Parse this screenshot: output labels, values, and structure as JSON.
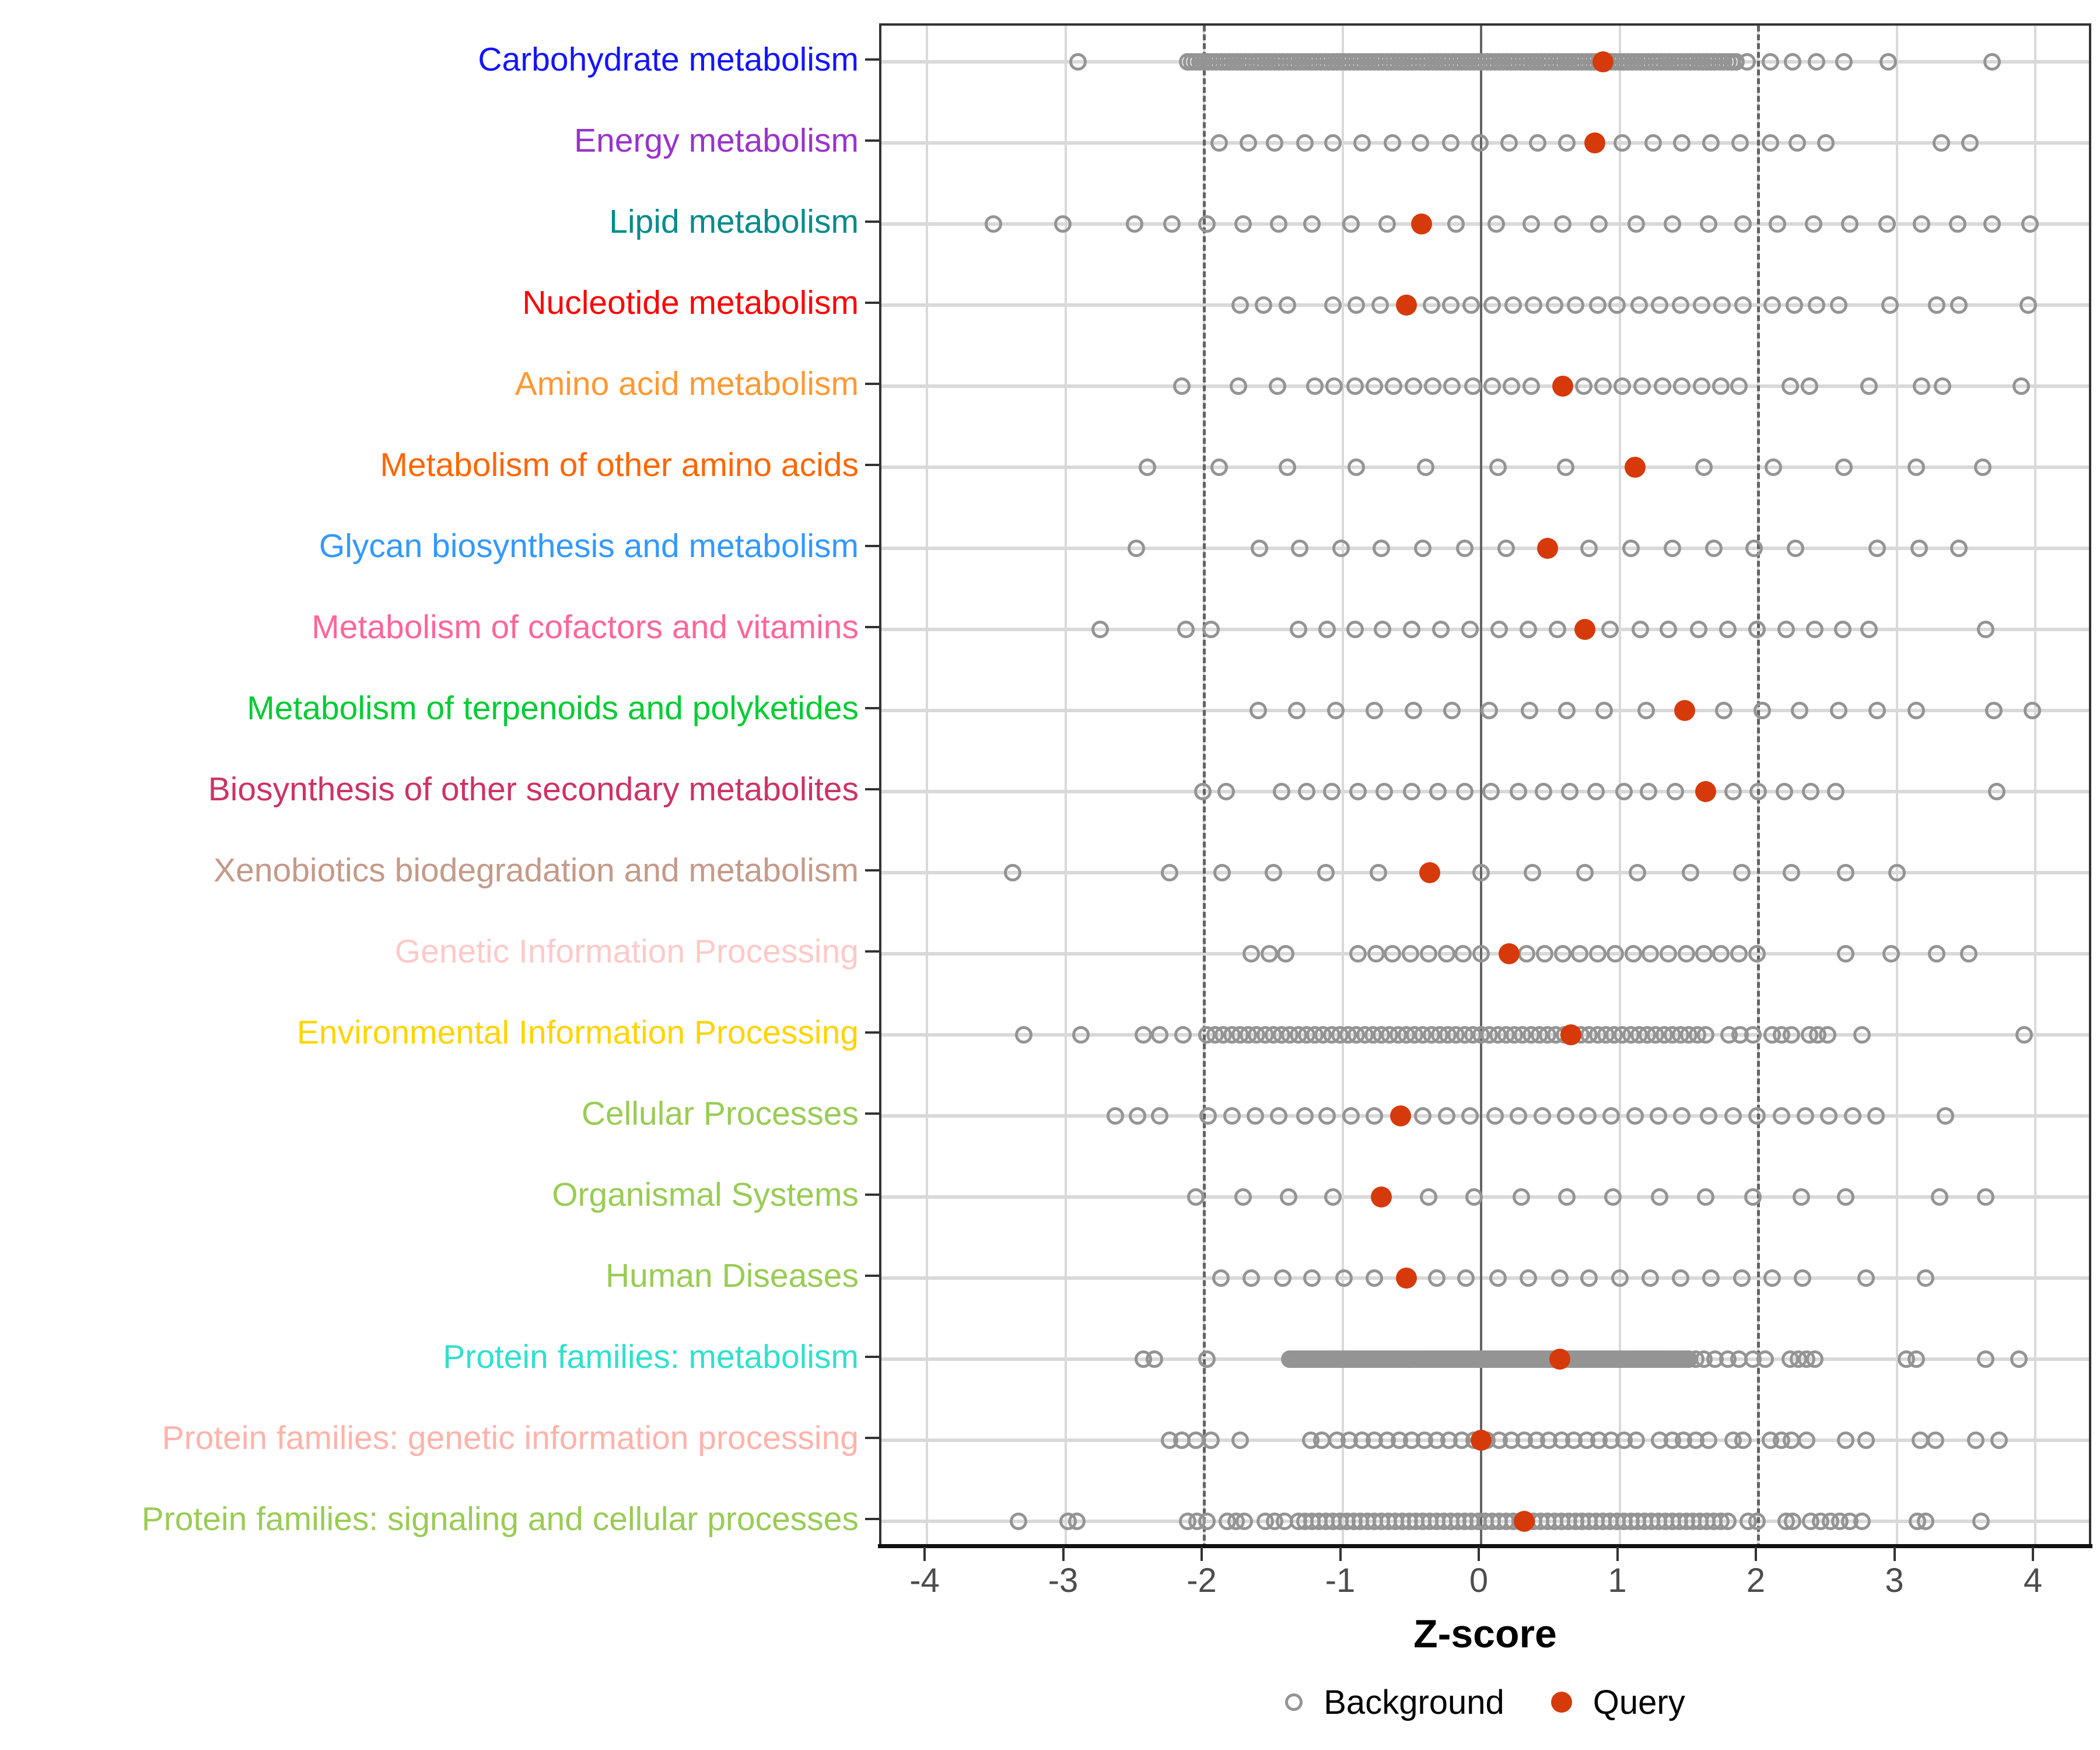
{
  "chart_data": {
    "type": "scatter",
    "subtype": "strip-plot",
    "title": "",
    "xlabel": "Z-score",
    "x_ticks": [
      "-4",
      "-3",
      "-2",
      "-1",
      "0",
      "1",
      "2",
      "3",
      "4"
    ],
    "x_tick_values": [
      -4,
      -3,
      -2,
      -1,
      0,
      1,
      2,
      3,
      4
    ],
    "x_range": [
      -4.35,
      4.42
    ],
    "grid": "major-x-and-category-rows",
    "reference_lines": {
      "solid_at": 0,
      "dashed_at": [
        -2,
        2
      ]
    },
    "legend_position": "bottom-center",
    "legend": [
      {
        "label": "Background",
        "marker": "open-circle",
        "color": "#949494"
      },
      {
        "label": "Query",
        "marker": "filled-circle",
        "color": "#D63A0A"
      }
    ],
    "point_colors": {
      "background_stroke": "#949494",
      "query_fill": "#D63A0A"
    },
    "categories": [
      {
        "label": "Carbohydrate metabolism",
        "color": "#1414FF",
        "query": 0.88,
        "background": {
          "bands": [
            {
              "from": -2.12,
              "to": 1.84,
              "step": 0.03
            }
          ],
          "points": [
            -2.91,
            1.92,
            2.09,
            2.25,
            2.42,
            2.62,
            2.94,
            3.69
          ]
        }
      },
      {
        "label": "Energy metabolism",
        "color": "#9933CC",
        "query": 0.82,
        "background": {
          "bands": [],
          "points": [
            -1.89,
            -1.68,
            -1.49,
            -1.27,
            -1.07,
            -0.86,
            -0.64,
            -0.44,
            -0.22,
            -0.01,
            0.2,
            0.41,
            0.62,
            1.02,
            1.24,
            1.45,
            1.66,
            1.87,
            2.09,
            2.28,
            2.49,
            3.32,
            3.53
          ]
        }
      },
      {
        "label": "Lipid metabolism",
        "color": "#008B8B",
        "query": -0.43,
        "background": {
          "bands": [],
          "points": [
            -3.52,
            -3.02,
            -2.5,
            -2.23,
            -1.98,
            -1.72,
            -1.46,
            -1.22,
            -0.94,
            -0.68,
            -0.18,
            0.11,
            0.36,
            0.59,
            0.85,
            1.12,
            1.38,
            1.64,
            1.89,
            2.14,
            2.4,
            2.66,
            2.93,
            3.18,
            3.44,
            3.69,
            3.96
          ]
        }
      },
      {
        "label": "Nucleotide metabolism",
        "color": "#FF0000",
        "query": -0.54,
        "background": {
          "bands": [],
          "points": [
            -1.74,
            -1.57,
            -1.4,
            -1.07,
            -0.9,
            -0.73,
            -0.36,
            -0.22,
            -0.07,
            0.08,
            0.23,
            0.38,
            0.53,
            0.68,
            0.84,
            0.98,
            1.14,
            1.29,
            1.44,
            1.59,
            1.74,
            1.89,
            2.1,
            2.26,
            2.42,
            2.58,
            2.95,
            3.29,
            3.45,
            3.95
          ]
        }
      },
      {
        "label": "Amino acid metabolism",
        "color": "#FF9933",
        "query": 0.59,
        "background": {
          "bands": [],
          "points": [
            -2.16,
            -1.75,
            -1.47,
            -1.2,
            -1.06,
            -0.91,
            -0.77,
            -0.63,
            -0.49,
            -0.35,
            -0.21,
            -0.06,
            0.08,
            0.22,
            0.36,
            0.74,
            0.88,
            1.02,
            1.16,
            1.31,
            1.45,
            1.59,
            1.73,
            1.86,
            2.23,
            2.37,
            2.8,
            3.18,
            3.33,
            3.9
          ]
        }
      },
      {
        "label": "Metabolism of other amino acids",
        "color": "#FF6600",
        "query": 1.11,
        "background": {
          "bands": [],
          "points": [
            -2.41,
            -1.89,
            -1.4,
            -0.9,
            -0.4,
            0.12,
            0.61,
            1.61,
            2.11,
            2.62,
            3.14,
            3.62
          ]
        }
      },
      {
        "label": "Glycan biosynthesis and metabolism",
        "color": "#3399FF",
        "query": 0.48,
        "background": {
          "bands": [],
          "points": [
            -2.49,
            -1.6,
            -1.31,
            -1.01,
            -0.72,
            -0.42,
            -0.12,
            0.18,
            0.78,
            1.08,
            1.38,
            1.68,
            1.97,
            2.27,
            2.86,
            3.16,
            3.45
          ]
        }
      },
      {
        "label": "Metabolism of cofactors and vitamins",
        "color": "#FF6699",
        "query": 0.75,
        "background": {
          "bands": [],
          "points": [
            -2.75,
            -2.13,
            -1.95,
            -1.32,
            -1.11,
            -0.91,
            -0.71,
            -0.5,
            -0.29,
            -0.08,
            0.13,
            0.34,
            0.55,
            0.93,
            1.15,
            1.35,
            1.57,
            1.78,
            1.99,
            2.2,
            2.41,
            2.61,
            2.8,
            3.64
          ]
        }
      },
      {
        "label": "Metabolism of terpenoids and polyketides",
        "color": "#00CC33",
        "query": 1.47,
        "background": {
          "bands": [],
          "points": [
            -1.61,
            -1.33,
            -1.05,
            -0.77,
            -0.49,
            -0.21,
            0.06,
            0.35,
            0.62,
            0.89,
            1.19,
            1.75,
            2.03,
            2.3,
            2.58,
            2.86,
            3.14,
            3.7,
            3.98
          ]
        }
      },
      {
        "label": "Biosynthesis of other secondary metabolites",
        "color": "#CC3366",
        "query": 1.62,
        "background": {
          "bands": [],
          "points": [
            -2.01,
            -1.84,
            -1.44,
            -1.26,
            -1.08,
            -0.89,
            -0.7,
            -0.5,
            -0.31,
            -0.12,
            0.07,
            0.27,
            0.45,
            0.64,
            0.83,
            1.03,
            1.21,
            1.4,
            1.82,
            2.0,
            2.19,
            2.38,
            2.56,
            3.72
          ]
        }
      },
      {
        "label": "Xenobiotics biodegradation and metabolism",
        "color": "#C49A89",
        "query": -0.37,
        "background": {
          "bands": [],
          "points": [
            -3.38,
            -2.25,
            -1.87,
            -1.5,
            -1.12,
            -0.74,
            0.0,
            0.37,
            0.75,
            1.13,
            1.51,
            1.88,
            2.24,
            2.63,
            3.0
          ]
        }
      },
      {
        "label": "Genetic Information Processing",
        "color": "#FFC9C9",
        "query": 0.2,
        "background": {
          "bands": [],
          "points": [
            -1.66,
            -1.53,
            -1.41,
            -0.89,
            -0.76,
            -0.64,
            -0.51,
            -0.38,
            -0.25,
            -0.13,
            0.0,
            0.33,
            0.46,
            0.59,
            0.71,
            0.84,
            0.97,
            1.1,
            1.22,
            1.35,
            1.48,
            1.61,
            1.73,
            1.86,
            1.99,
            2.63,
            2.96,
            3.29,
            3.52
          ]
        }
      },
      {
        "label": "Environmental Information Processing",
        "color": "#FFD400",
        "query": 0.65,
        "background": {
          "bands": [
            {
              "from": -1.98,
              "to": 1.64,
              "step": 0.06
            }
          ],
          "points": [
            -3.3,
            -2.89,
            -2.44,
            -2.32,
            -2.15,
            1.79,
            1.87,
            1.96,
            2.1,
            2.17,
            2.24,
            2.37,
            2.43,
            2.5,
            2.75,
            3.92
          ]
        }
      },
      {
        "label": "Cellular Processes",
        "color": "#99CC55",
        "query": -0.58,
        "background": {
          "bands": [],
          "points": [
            -2.64,
            -2.48,
            -2.32,
            -1.97,
            -1.8,
            -1.63,
            -1.46,
            -1.27,
            -1.11,
            -0.94,
            -0.77,
            -0.42,
            -0.25,
            -0.08,
            0.1,
            0.27,
            0.44,
            0.61,
            0.77,
            0.94,
            1.11,
            1.28,
            1.45,
            1.64,
            1.82,
            1.99,
            2.17,
            2.34,
            2.51,
            2.68,
            2.85,
            3.35
          ]
        }
      },
      {
        "label": "Organismal Systems",
        "color": "#99CC55",
        "query": -0.72,
        "background": {
          "bands": [],
          "points": [
            -2.06,
            -1.72,
            -1.39,
            -1.07,
            -0.38,
            -0.05,
            0.29,
            0.62,
            0.95,
            1.29,
            1.62,
            1.96,
            2.31,
            2.63,
            3.31,
            3.64
          ]
        }
      },
      {
        "label": "Human Diseases",
        "color": "#99CC55",
        "query": -0.54,
        "background": {
          "bands": [],
          "points": [
            -1.88,
            -1.66,
            -1.43,
            -1.22,
            -0.99,
            -0.77,
            -0.32,
            -0.11,
            0.12,
            0.34,
            0.57,
            0.78,
            1.0,
            1.22,
            1.44,
            1.66,
            1.88,
            2.1,
            2.32,
            2.78,
            3.21
          ]
        }
      },
      {
        "label": "Protein families: metabolism",
        "color": "#30E0CE",
        "query": 0.57,
        "background": {
          "bands": [
            {
              "from": -1.38,
              "to": 1.5,
              "step": 0.02
            }
          ],
          "points": [
            -2.44,
            -2.36,
            -1.98,
            1.55,
            1.61,
            1.69,
            1.78,
            1.86,
            1.96,
            2.05,
            2.23,
            2.29,
            2.35,
            2.41,
            3.07,
            3.14,
            3.64,
            3.88
          ]
        }
      },
      {
        "label": "Protein families: genetic information processing",
        "color": "#FFB3AB",
        "query": 0.0,
        "background": {
          "bands": [
            {
              "from": -1.04,
              "to": 1.19,
              "step": 0.09
            }
          ],
          "points": [
            -2.25,
            -2.16,
            -2.06,
            -1.95,
            -1.74,
            -1.23,
            -1.15,
            1.29,
            1.38,
            1.46,
            1.55,
            1.64,
            1.82,
            1.89,
            2.09,
            2.17,
            2.24,
            2.35,
            2.63,
            2.78,
            3.17,
            3.28,
            3.57,
            3.74
          ]
        }
      },
      {
        "label": "Protein families: signaling and cellular processes",
        "color": "#99CC55",
        "query": 0.31,
        "background": {
          "bands": [
            {
              "from": -1.32,
              "to": 1.8,
              "step": 0.05
            }
          ],
          "points": [
            -3.34,
            -2.98,
            -2.92,
            -2.12,
            -2.05,
            -1.98,
            -1.83,
            -1.77,
            -1.71,
            -1.56,
            -1.49,
            -1.42,
            1.93,
            1.99,
            2.2,
            2.25,
            2.38,
            2.45,
            2.52,
            2.59,
            2.66,
            2.75,
            3.15,
            3.21,
            3.61
          ]
        }
      }
    ]
  },
  "colors": {
    "grid": "#D9D9D9",
    "reference_line": "#636363",
    "panel_border": "#333333",
    "axis_line": "#111111",
    "tick": "#333333",
    "tick_label": "#4D4D4D",
    "background_point": "#949494",
    "query_point": "#D63A0A"
  }
}
